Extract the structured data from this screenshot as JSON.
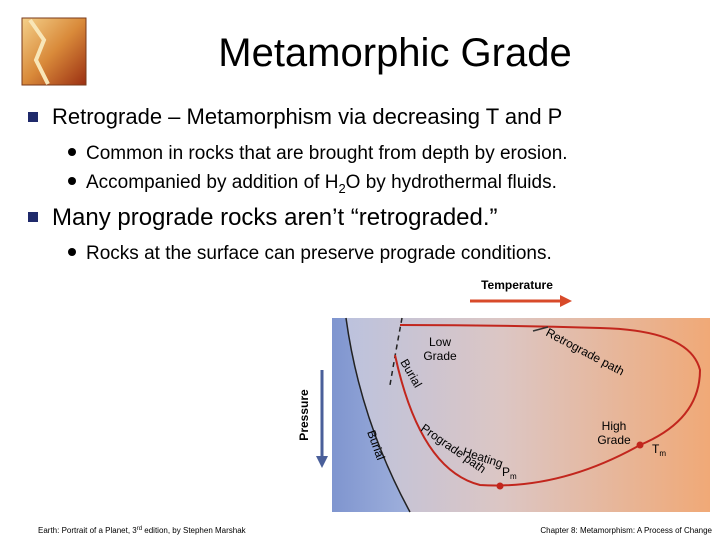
{
  "title": "Metamorphic Grade",
  "bullets": [
    {
      "text": "Retrograde – Metamorphism via decreasing T and P",
      "sub": [
        {
          "parts": [
            "Common in rocks that are brought from depth by erosion."
          ]
        },
        {
          "parts": [
            "Accompanied by addition of H",
            "2",
            "O by hydrothermal fluids."
          ]
        }
      ]
    },
    {
      "text": "Many prograde rocks aren’t “retrograded.”",
      "sub": [
        {
          "parts": [
            "Rocks at the surface can preserve prograde conditions."
          ]
        }
      ]
    }
  ],
  "diagram": {
    "temperature": "Temperature",
    "pressure": "Pressure",
    "low_grade": [
      "Low",
      "Grade"
    ],
    "high_grade": [
      "High",
      "Grade"
    ],
    "burial_upper": "Burial",
    "burial_lower": "Burial",
    "retrograde_path": "Retrograde path",
    "prograde_path": "Prograde path",
    "heating": "Heating",
    "tm": [
      "T",
      "m"
    ],
    "pm": [
      "P",
      "m"
    ]
  },
  "footer": {
    "left": [
      "Earth: Portrait of a Planet, 3",
      "rd",
      " edition, by Stephen Marshak"
    ],
    "right": "Chapter 8: Metamorphism: A Process of Change"
  }
}
